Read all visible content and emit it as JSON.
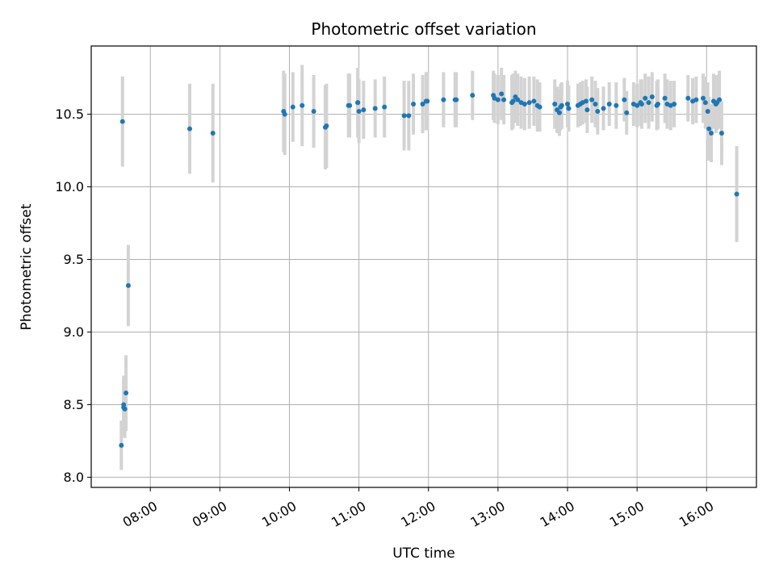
{
  "chart_data": {
    "type": "scatter",
    "title": "Photometric offset variation",
    "xlabel": "UTC time",
    "ylabel": "Photometric offset",
    "xlim": [
      "07:09",
      "16:43"
    ],
    "ylim": [
      7.93,
      10.97
    ],
    "grid": true,
    "x_ticks": [
      "08:00",
      "09:00",
      "10:00",
      "11:00",
      "12:00",
      "13:00",
      "14:00",
      "15:00",
      "16:00"
    ],
    "y_ticks": [
      "8.0",
      "8.5",
      "9.0",
      "9.5",
      "10.0",
      "10.5"
    ],
    "colors": {
      "point": "#1f77b4",
      "errorbar": "#d3d3d3",
      "grid": "#b0b0b0"
    },
    "series": [
      {
        "x": [
          "07:35",
          "07:36",
          "07:37",
          "07:37",
          "07:38",
          "07:39",
          "07:41",
          "08:34",
          "08:54",
          "09:55",
          "09:56",
          "10:03",
          "10:11",
          "10:21",
          "10:31",
          "10:32",
          "10:51",
          "10:52",
          "10:59",
          "10:59",
          "11:00",
          "11:04",
          "11:14",
          "11:22",
          "11:39",
          "11:43",
          "11:47",
          "11:55",
          "11:58",
          "11:59",
          "12:13",
          "12:23",
          "12:24",
          "12:38",
          "12:56",
          "12:57",
          "13:00",
          "13:03",
          "13:05",
          "13:12",
          "13:13",
          "13:15",
          "13:17",
          "13:20",
          "13:23",
          "13:27",
          "13:31",
          "13:34",
          "13:36",
          "13:49",
          "13:51",
          "13:53",
          "13:54",
          "13:55",
          "14:00",
          "14:01",
          "14:09",
          "14:11",
          "14:13",
          "14:16",
          "14:17",
          "14:21",
          "14:24",
          "14:26",
          "14:31",
          "14:36",
          "14:42",
          "14:49",
          "14:51",
          "14:57",
          "15:00",
          "15:03",
          "15:04",
          "15:07",
          "15:10",
          "15:13",
          "15:17",
          "15:18",
          "15:24",
          "15:26",
          "15:29",
          "15:32",
          "15:44",
          "15:48",
          "15:51",
          "15:57",
          "15:59",
          "16:01",
          "16:02",
          "16:04",
          "16:06",
          "16:08",
          "16:09",
          "16:11",
          "16:13",
          "16:26"
        ],
        "y": [
          8.22,
          10.45,
          8.5,
          8.48,
          8.47,
          8.58,
          9.32,
          10.4,
          10.37,
          10.52,
          10.5,
          10.55,
          10.56,
          10.52,
          10.41,
          10.42,
          10.56,
          10.56,
          10.58,
          10.58,
          10.52,
          10.53,
          10.54,
          10.55,
          10.49,
          10.49,
          10.57,
          10.57,
          10.59,
          10.59,
          10.6,
          10.6,
          10.6,
          10.63,
          10.63,
          10.61,
          10.6,
          10.64,
          10.6,
          10.58,
          10.59,
          10.62,
          10.6,
          10.58,
          10.57,
          10.58,
          10.59,
          10.56,
          10.55,
          10.57,
          10.53,
          10.51,
          10.55,
          10.56,
          10.57,
          10.54,
          10.56,
          10.57,
          10.58,
          10.59,
          10.53,
          10.6,
          10.57,
          10.52,
          10.54,
          10.57,
          10.56,
          10.6,
          10.51,
          10.57,
          10.56,
          10.58,
          10.57,
          10.61,
          10.58,
          10.62,
          10.56,
          10.57,
          10.61,
          10.57,
          10.56,
          10.57,
          10.61,
          10.59,
          10.6,
          10.61,
          10.58,
          10.52,
          10.4,
          10.37,
          10.59,
          10.57,
          10.58,
          10.6,
          10.37,
          9.95
        ],
        "yerr": [
          0.17,
          0.31,
          0.2,
          0.2,
          0.2,
          0.26,
          0.28,
          0.31,
          0.34,
          0.28,
          0.28,
          0.24,
          0.28,
          0.25,
          0.29,
          0.29,
          0.22,
          0.22,
          0.24,
          0.22,
          0.22,
          0.2,
          0.2,
          0.21,
          0.24,
          0.24,
          0.21,
          0.2,
          0.2,
          0.2,
          0.19,
          0.19,
          0.19,
          0.17,
          0.17,
          0.17,
          0.17,
          0.18,
          0.17,
          0.19,
          0.19,
          0.18,
          0.18,
          0.18,
          0.18,
          0.18,
          0.17,
          0.18,
          0.17,
          0.17,
          0.16,
          0.16,
          0.16,
          0.16,
          0.16,
          0.16,
          0.15,
          0.15,
          0.15,
          0.15,
          0.16,
          0.16,
          0.16,
          0.16,
          0.15,
          0.15,
          0.16,
          0.15,
          0.15,
          0.15,
          0.15,
          0.16,
          0.17,
          0.17,
          0.18,
          0.17,
          0.17,
          0.17,
          0.17,
          0.17,
          0.17,
          0.16,
          0.16,
          0.16,
          0.16,
          0.17,
          0.18,
          0.2,
          0.22,
          0.2,
          0.19,
          0.2,
          0.19,
          0.2,
          0.22,
          0.33
        ]
      }
    ]
  }
}
